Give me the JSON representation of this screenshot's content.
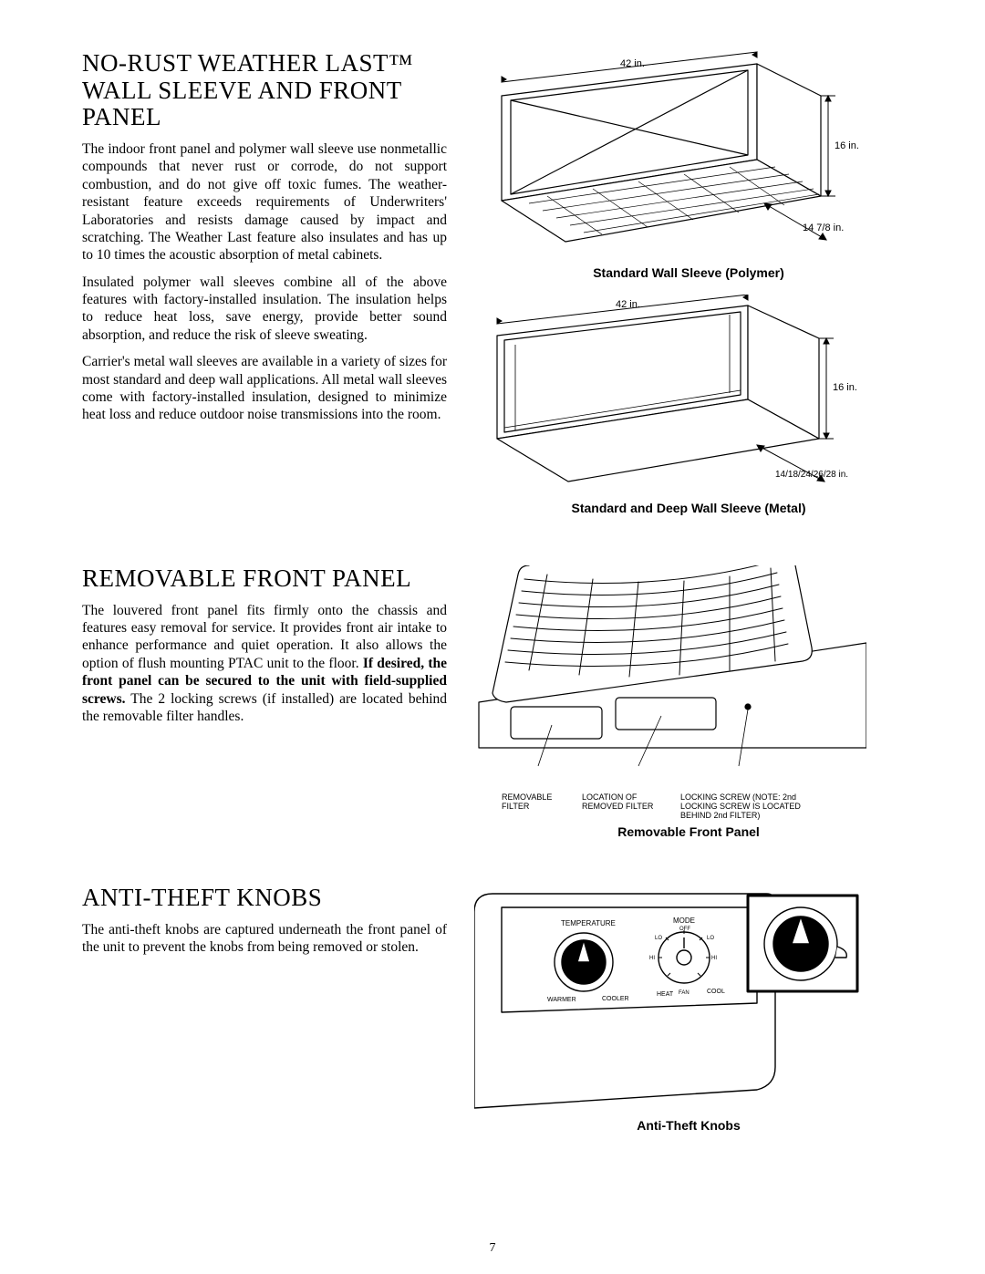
{
  "page_number": "7",
  "sections": [
    {
      "title": "NO-RUST WEATHER LAST™ WALL SLEEVE AND FRONT PANEL",
      "paragraphs": [
        "The indoor front panel and polymer wall sleeve use nonmetallic compounds that never rust or corrode, do not support combustion, and do not give off toxic fumes. The weather-resistant feature exceeds requirements of Underwriters' Laboratories and resists damage caused by impact and scratching. The Weather Last feature also insulates and has up to 10 times the acoustic absorption of metal cabinets.",
        "Insulated polymer wall sleeves combine all of the above features with factory-installed insulation. The insulation helps to reduce heat loss, save energy, provide better sound absorption, and reduce the risk of sleeve sweating.",
        "Carrier's metal wall sleeves are available in a variety of sizes for most standard and deep wall applications. All metal wall sleeves come with factory-installed insulation, designed to minimize heat loss and reduce outdoor noise transmissions into the room."
      ]
    },
    {
      "title": "REMOVABLE FRONT PANEL",
      "body_html": "The louvered front panel fits firmly onto the chassis and features easy removal for service. It provides front air intake to enhance performance and quiet operation. It also allows the option of flush mounting PTAC unit to the floor. <b>If desired, the front panel can be secured to the unit with field-supplied screws.</b> The 2 locking screws (if installed) are located behind the removable filter handles."
    },
    {
      "title": "ANTI-THEFT KNOBS",
      "paragraphs": [
        "The anti-theft knobs are captured underneath the front panel of the unit to prevent the knobs from being removed or stolen."
      ]
    }
  ],
  "figures": {
    "sleeve_polymer": {
      "caption": "Standard Wall Sleeve (Polymer)",
      "dims": {
        "width": "42 in.",
        "height": "16 in.",
        "depth": "14 7/8 in."
      }
    },
    "sleeve_metal": {
      "caption": "Standard and Deep Wall Sleeve (Metal)",
      "dims": {
        "width": "42 in.",
        "height": "16 in.",
        "depth": "14/18/24/26/28 in."
      }
    },
    "front_panel": {
      "caption": "Removable Front Panel",
      "callouts": {
        "a": "REMOVABLE FILTER",
        "b": "LOCATION OF REMOVED FILTER",
        "c": "LOCKING SCREW (NOTE: 2nd LOCKING SCREW IS LOCATED BEHIND 2nd FILTER)"
      }
    },
    "knobs": {
      "caption": "Anti-Theft Knobs",
      "labels": {
        "temp": "TEMPERATURE",
        "mode": "MODE",
        "warmer": "WARMER",
        "cooler": "COOLER",
        "off": "OFF",
        "lo": "LO",
        "hi": "HI",
        "heat": "HEAT",
        "cool": "COOL",
        "fan": "FAN"
      }
    }
  },
  "style": {
    "text_color": "#000000",
    "bg_color": "#ffffff",
    "stroke": "#000000",
    "fill_white": "#ffffff"
  }
}
